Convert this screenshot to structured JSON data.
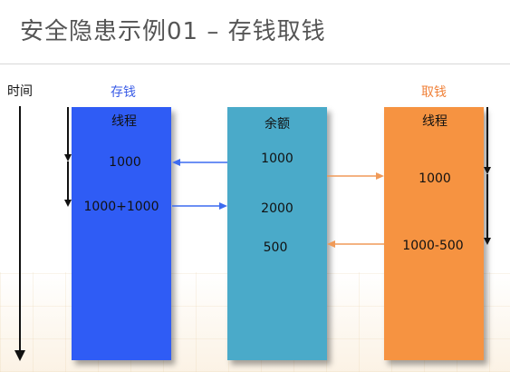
{
  "title": "安全隐患示例01  –  存钱取钱",
  "time_label": "时间",
  "deposit_label": "存钱",
  "withdraw_label": "取钱",
  "colors": {
    "deposit": "#2f5cf5",
    "balance": "#4aaac9",
    "withdraw": "#f69341",
    "deposit_text": "#3b5de7",
    "withdraw_text": "#f0823a",
    "blue_arrow": "#3d6cf0",
    "orange_arrow": "#f09a58"
  },
  "deposit_thread": {
    "header": "线程",
    "value1": "1000",
    "value2": "1000+1000"
  },
  "balance": {
    "header": "余额",
    "value1": "1000",
    "value2": "2000",
    "value3": "500"
  },
  "withdraw_thread": {
    "header": "线程",
    "value1": "1000",
    "value2": "1000-500"
  }
}
